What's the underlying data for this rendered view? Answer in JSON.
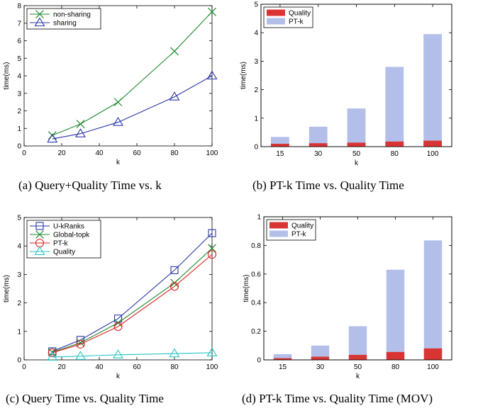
{
  "captions": {
    "a": "(a) Query+Quality Time vs. k",
    "b": "(b) PT-k Time vs. Quality Time",
    "c": "(c) Query Time vs. Quality Time",
    "d": "(d) PT-k Time vs. Quality Time (MOV)"
  },
  "chart_data": [
    {
      "id": "a",
      "type": "line",
      "xlabel": "k",
      "ylabel": "time(ms)",
      "xlim": [
        0,
        100
      ],
      "ylim": [
        0,
        8
      ],
      "xticks": [
        0,
        20,
        40,
        60,
        80,
        100
      ],
      "yticks": [
        0,
        1,
        2,
        3,
        4,
        5,
        6,
        7,
        8
      ],
      "legend": "top-left",
      "series": [
        {
          "name": "non-sharing",
          "marker": "x",
          "color": "#1f8a2e",
          "x": [
            15,
            30,
            50,
            80,
            100
          ],
          "y": [
            0.6,
            1.25,
            2.5,
            5.4,
            7.65
          ]
        },
        {
          "name": "sharing",
          "marker": "triangle",
          "color": "#2b36a8",
          "x": [
            15,
            30,
            50,
            80,
            100
          ],
          "y": [
            0.4,
            0.7,
            1.35,
            2.8,
            4.0
          ]
        }
      ]
    },
    {
      "id": "b",
      "type": "bar",
      "stacked": true,
      "xlabel": "k",
      "ylabel": "time(ms)",
      "ylim": [
        0,
        5
      ],
      "yticks": [
        0,
        1,
        2,
        3,
        4,
        5
      ],
      "categories": [
        "15",
        "30",
        "50",
        "80",
        "100"
      ],
      "legend": "top-left",
      "series": [
        {
          "name": "Quality",
          "color": "#d93434",
          "values": [
            0.1,
            0.12,
            0.14,
            0.18,
            0.21
          ]
        },
        {
          "name": "PT-k",
          "color": "#b3bfe8",
          "values": [
            0.34,
            0.7,
            1.34,
            2.8,
            3.95
          ]
        }
      ]
    },
    {
      "id": "c",
      "type": "line",
      "xlabel": "k",
      "ylabel": "time(ms)",
      "xlim": [
        0,
        100
      ],
      "ylim": [
        0,
        5
      ],
      "xticks": [
        0,
        20,
        40,
        60,
        80,
        100
      ],
      "yticks": [
        0,
        1,
        2,
        3,
        4,
        5
      ],
      "legend": "top-left",
      "series": [
        {
          "name": "U-kRanks",
          "marker": "square",
          "color": "#2b36a8",
          "x": [
            15,
            30,
            50,
            80,
            100
          ],
          "y": [
            0.3,
            0.7,
            1.45,
            3.15,
            4.45
          ]
        },
        {
          "name": "Global-topk",
          "marker": "x",
          "color": "#1f8a2e",
          "x": [
            15,
            30,
            50,
            80,
            100
          ],
          "y": [
            0.27,
            0.6,
            1.3,
            2.7,
            3.92
          ]
        },
        {
          "name": "PT-k",
          "marker": "circle",
          "color": "#e02020",
          "x": [
            15,
            30,
            50,
            80,
            100
          ],
          "y": [
            0.25,
            0.55,
            1.17,
            2.58,
            3.7
          ]
        },
        {
          "name": "Quality",
          "marker": "triangle",
          "color": "#27c4c4",
          "x": [
            15,
            30,
            50,
            80,
            100
          ],
          "y": [
            0.1,
            0.13,
            0.18,
            0.22,
            0.25
          ]
        }
      ]
    },
    {
      "id": "d",
      "type": "bar",
      "stacked": true,
      "xlabel": "k",
      "ylabel": "time(ms)",
      "ylim": [
        0,
        1
      ],
      "yticks": [
        0,
        0.2,
        0.4,
        0.6,
        0.8,
        1
      ],
      "categories": [
        "15",
        "30",
        "50",
        "80",
        "100"
      ],
      "legend": "top-left",
      "series": [
        {
          "name": "Quality",
          "color": "#d93434",
          "values": [
            0.012,
            0.022,
            0.035,
            0.055,
            0.08
          ]
        },
        {
          "name": "PT-k",
          "color": "#b3bfe8",
          "values": [
            0.04,
            0.1,
            0.235,
            0.63,
            0.835
          ]
        }
      ]
    }
  ]
}
